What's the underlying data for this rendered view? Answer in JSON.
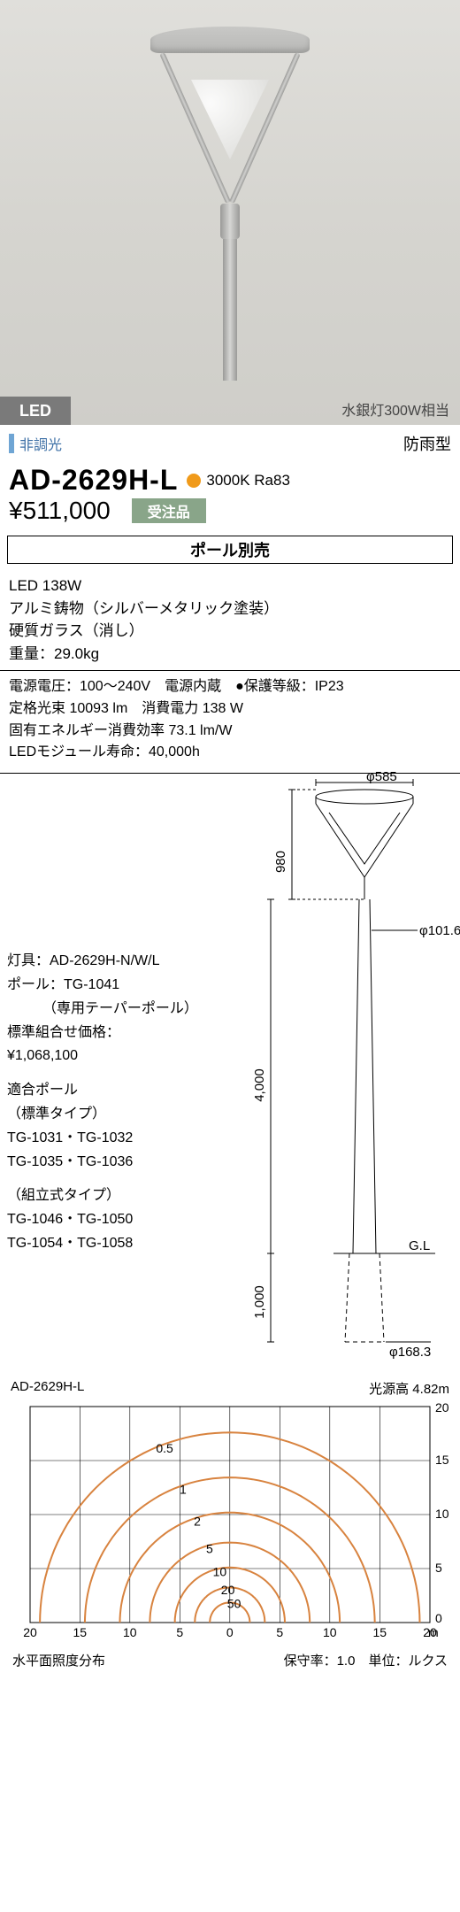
{
  "image": {
    "led_badge": "LED",
    "equivalent": "水銀灯300W相当"
  },
  "subheader": {
    "dimming": "非調光",
    "rainproof": "防雨型"
  },
  "model": {
    "number": "AD-2629H-L",
    "color_temp": "3000K Ra83",
    "dot_color": "#f09a1a"
  },
  "price": {
    "value": "¥511,000",
    "order_badge": "受注品"
  },
  "pole_separate": "ポール別売",
  "spec1": {
    "l1": "LED 138W",
    "l2": "アルミ鋳物（シルバーメタリック塗装）",
    "l3": "硬質ガラス（消し）",
    "l4": "重量：29.0kg"
  },
  "spec2": {
    "l1": "電源電圧：100～240V　電源内蔵　●保護等級：IP23",
    "l2": "定格光束 10093 lm　消費電力 138 W",
    "l3": "固有エネルギー消費効率 73.1 lm/W",
    "l4": "LEDモジュール寿命：40,000h"
  },
  "diagram": {
    "phi_top": "φ585",
    "h_top": "980",
    "phi_mid": "φ101.6",
    "h_pole": "4,000",
    "gl": "G.L",
    "h_base": "1,000",
    "phi_base": "φ168.3",
    "txt1": "灯具：AD-2629H-N/W/L",
    "txt2": "ポール：TG-1041",
    "txt3": "　　　（専用テーパーポール）",
    "txt4": "標準組合せ価格：",
    "txt5": "¥1,068,100",
    "txt6": "適合ポール",
    "txt7": "（標準タイプ）",
    "txt8": "TG-1031・TG-1032",
    "txt9": "TG-1035・TG-1036",
    "txt10": "（組立式タイプ）",
    "txt11": "TG-1046・TG-1050",
    "txt12": "TG-1054・TG-1058"
  },
  "lux": {
    "model": "AD-2629H-L",
    "source_height": "光源高 4.82m",
    "title": "水平面照度分布",
    "note": "保守率：1.0　単位：ルクス",
    "arc_labels": [
      "0.5",
      "1",
      "2",
      "5",
      "10",
      "20",
      "50"
    ],
    "arc_color": "#d8833f",
    "x_ticks": [
      "20",
      "15",
      "10",
      "5",
      "0",
      "5",
      "10",
      "15",
      "20"
    ],
    "x_unit": "m",
    "y_ticks": [
      "20",
      "15",
      "10",
      "5",
      "0"
    ]
  }
}
